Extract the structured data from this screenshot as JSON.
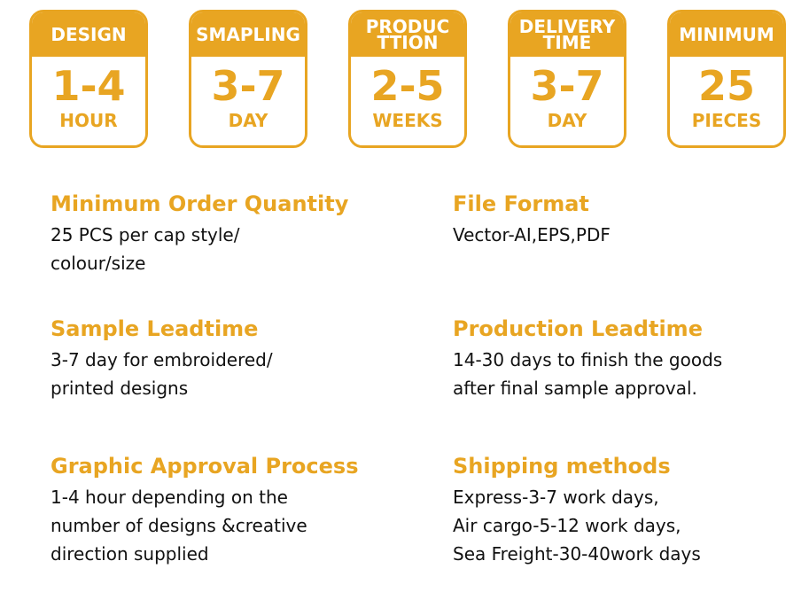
{
  "cards": [
    {
      "title": "DESIGN",
      "value": "1-4",
      "unit": "HOUR"
    },
    {
      "title": "SMAPLING",
      "value": "3-7",
      "unit": "DAY"
    },
    {
      "title": "PRODUC TTION",
      "value": "2-5",
      "unit": "WEEKS"
    },
    {
      "title": "DELIVERY TIME",
      "value": "3-7",
      "unit": "DAY"
    },
    {
      "title": "MINIMUM",
      "value": "25",
      "unit": "PIECES"
    }
  ],
  "sections": [
    {
      "title": "Minimum Order Quantity",
      "lines": [
        "25 PCS per cap style/",
        "colour/size"
      ]
    },
    {
      "title": "File Format",
      "lines": [
        "Vector-AI,EPS,PDF"
      ]
    },
    {
      "title": "Sample Leadtime",
      "lines": [
        "3-7 day for embroidered/",
        "printed designs"
      ]
    },
    {
      "title": "Production Leadtime",
      "lines": [
        "14-30 days to finish the goods",
        "after final sample approval."
      ]
    },
    {
      "title": "Graphic Approval Process",
      "lines": [
        "1-4 hour depending on the",
        "number of designs &creative",
        "direction supplied"
      ]
    },
    {
      "title": "Shipping methods",
      "lines": [
        "Express-3-7 work days,",
        "Air cargo-5-12 work days,",
        "Sea Freight-30-40work days"
      ]
    }
  ],
  "accent": "#e8a522"
}
